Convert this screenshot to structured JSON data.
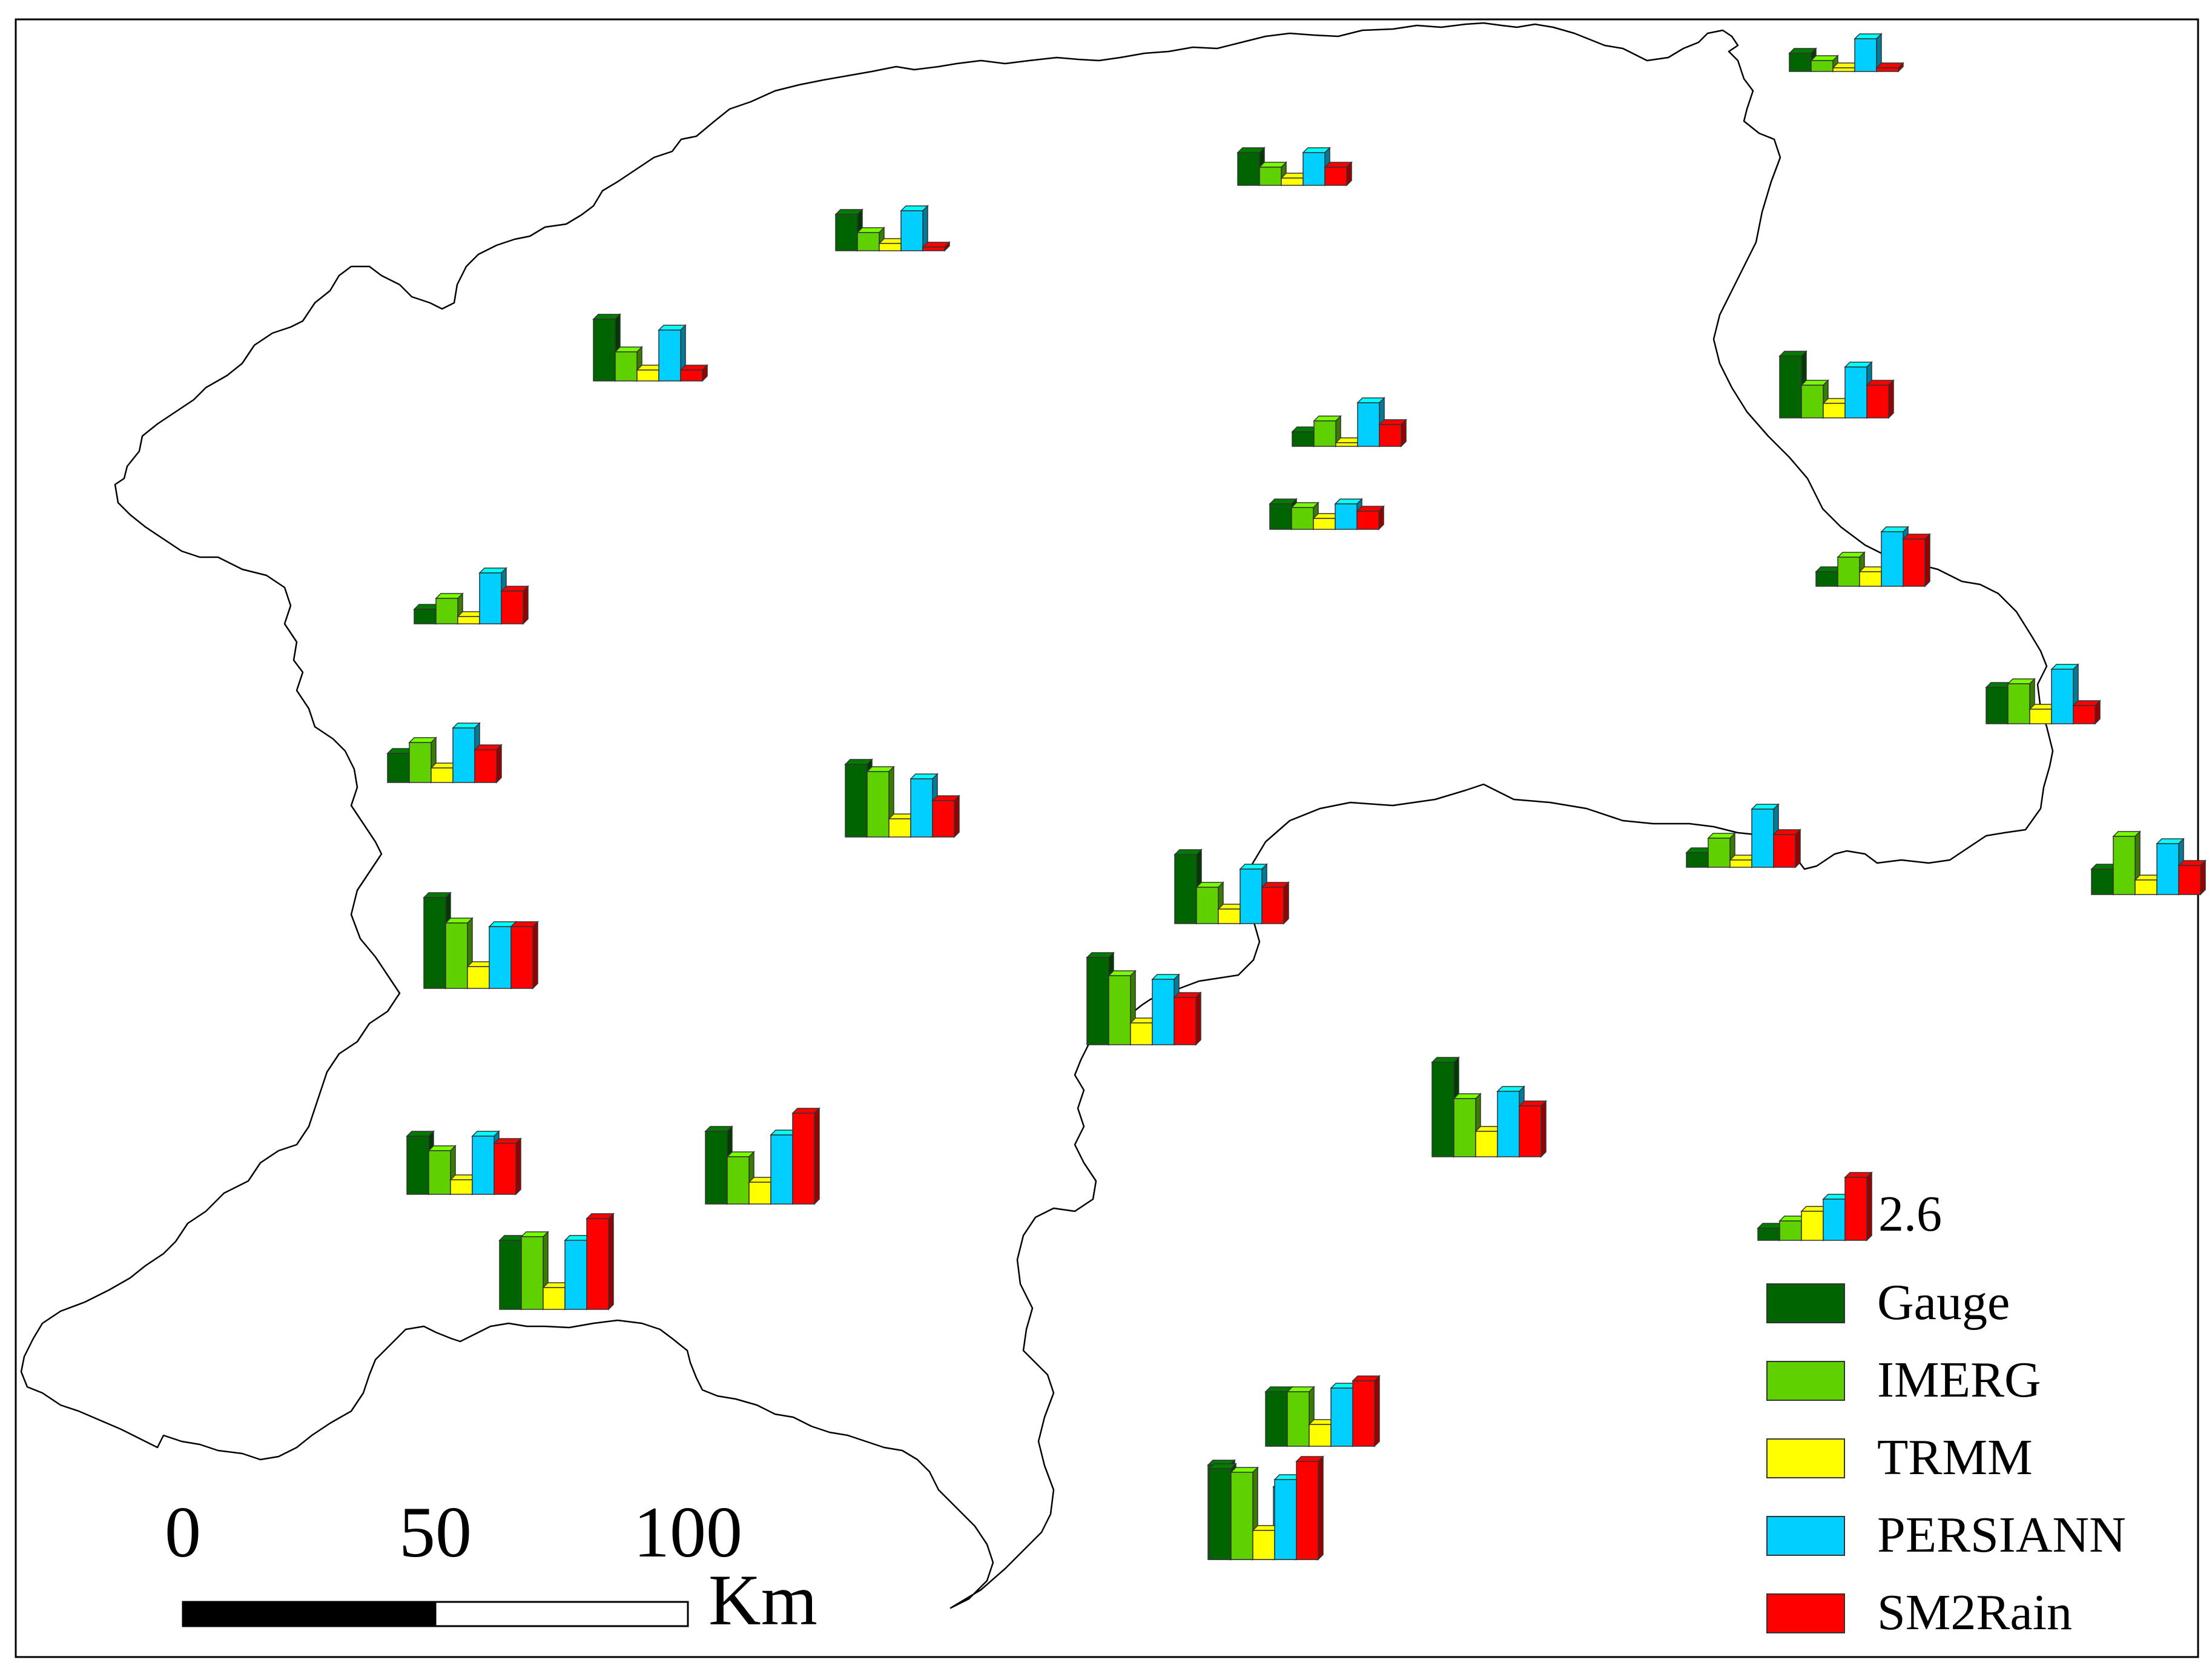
{
  "legend": {
    "symbol_value": "2.6",
    "items": [
      {
        "label": "Gauge",
        "color": "#006400"
      },
      {
        "label": "IMERG",
        "color": "#5fd000"
      },
      {
        "label": "TRMM",
        "color": "#ffff00"
      },
      {
        "label": "PERSIANN",
        "color": "#00cfff"
      },
      {
        "label": "SM2Rain",
        "color": "#ff0000"
      }
    ]
  },
  "scale_bar": {
    "tick_labels": [
      "0",
      "50",
      "100"
    ],
    "unit": "Km"
  },
  "chart_data": {
    "type": "bar",
    "series_names": [
      "Gauge",
      "IMERG",
      "TRMM",
      "PERSIANN",
      "SM2Rain"
    ],
    "legend_reference_values": [
      0.5,
      0.8,
      1.2,
      1.7,
      2.6
    ],
    "stations": [
      {
        "values": [
          0.5,
          0.3,
          0.1,
          0.9,
          0.1
        ]
      },
      {
        "values": [
          0.9,
          0.5,
          0.2,
          0.9,
          0.5
        ]
      },
      {
        "values": [
          1.0,
          0.5,
          0.2,
          1.1,
          0.1
        ]
      },
      {
        "values": [
          1.7,
          0.8,
          0.3,
          1.4,
          0.3
        ]
      },
      {
        "values": [
          1.7,
          0.9,
          0.4,
          1.4,
          0.9
        ]
      },
      {
        "values": [
          0.4,
          0.7,
          0.1,
          1.2,
          0.6
        ]
      },
      {
        "values": [
          0.7,
          0.6,
          0.3,
          0.7,
          0.5
        ]
      },
      {
        "values": [
          0.4,
          0.8,
          0.4,
          1.5,
          1.3
        ]
      },
      {
        "values": [
          0.4,
          0.7,
          0.2,
          1.4,
          0.9
        ]
      },
      {
        "values": [
          1.0,
          1.1,
          0.4,
          1.5,
          0.5
        ]
      },
      {
        "values": [
          0.8,
          1.1,
          0.4,
          1.5,
          0.9
        ]
      },
      {
        "values": [
          0.4,
          0.8,
          0.2,
          1.6,
          0.9
        ]
      },
      {
        "values": [
          0.7,
          1.6,
          0.4,
          1.4,
          0.8
        ]
      },
      {
        "values": [
          2.0,
          1.8,
          0.5,
          1.6,
          1.0
        ]
      },
      {
        "values": [
          1.9,
          1.0,
          0.4,
          1.5,
          1.0
        ]
      },
      {
        "values": [
          2.5,
          1.8,
          0.6,
          1.7,
          1.7
        ]
      },
      {
        "values": [
          2.4,
          1.9,
          0.6,
          1.8,
          1.3
        ]
      },
      {
        "values": [
          1.6,
          1.2,
          0.4,
          1.6,
          1.4
        ]
      },
      {
        "values": [
          2.6,
          1.6,
          0.7,
          1.8,
          1.4
        ]
      },
      {
        "values": [
          2.0,
          1.3,
          0.6,
          1.9,
          2.5
        ]
      },
      {
        "values": [
          1.9,
          2.0,
          0.6,
          1.9,
          2.5
        ]
      },
      {
        "values": [
          1.5,
          1.5,
          0.6,
          1.6,
          1.8
        ]
      },
      {
        "values": [
          2.6,
          2.3,
          0.7,
          2.0,
          2.1
        ]
      },
      {
        "values": [
          2.5,
          2.4,
          0.8,
          2.2,
          2.7
        ]
      }
    ]
  }
}
